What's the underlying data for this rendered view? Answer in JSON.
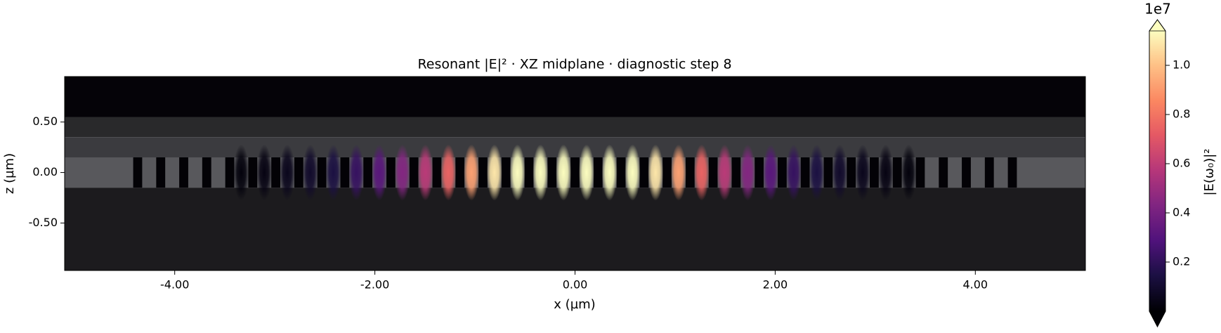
{
  "chart_data": {
    "type": "field-map",
    "title": "Resonant |E|² · XZ midplane · diagnostic step 8",
    "xlabel": "x (µm)",
    "ylabel": "z (µm)",
    "xlim": [
      -5.1,
      5.1
    ],
    "xticks": [
      {
        "value": -4,
        "label": "-4.00"
      },
      {
        "value": -2,
        "label": "-2.00"
      },
      {
        "value": 0,
        "label": "0.00"
      },
      {
        "value": 2,
        "label": "2.00"
      },
      {
        "value": 4,
        "label": "4.00"
      }
    ],
    "ylim": [
      -0.97,
      0.95
    ],
    "yticks": [
      {
        "value": 0.5,
        "label": "0.50"
      },
      {
        "value": 0,
        "label": "0.00"
      },
      {
        "value": -0.5,
        "label": "-0.50"
      }
    ],
    "layers": [
      {
        "z": [
          0.55,
          0.95
        ],
        "color": "#050308"
      },
      {
        "z": [
          0.35,
          0.55
        ],
        "color": "#29292b"
      },
      {
        "z": [
          0.15,
          0.35
        ],
        "color": "#3b3b3f"
      },
      {
        "z": [
          -0.15,
          0.15
        ],
        "color": "#58585c"
      },
      {
        "z": [
          -0.97,
          -0.15
        ],
        "color": "#1c1b1e"
      }
    ],
    "holes": {
      "x": [
        -4.37,
        -4.14,
        -3.91,
        -3.68,
        -3.45,
        -3.22,
        -2.99,
        -2.76,
        -2.53,
        -2.3,
        -2.07,
        -1.84,
        -1.61,
        -1.38,
        -1.15,
        -0.92,
        -0.69,
        -0.46,
        -0.23,
        0,
        0.23,
        0.46,
        0.69,
        0.92,
        1.15,
        1.38,
        1.61,
        1.84,
        2.07,
        2.3,
        2.53,
        2.76,
        2.99,
        3.22,
        3.45,
        3.68,
        3.91,
        4.14,
        4.37
      ],
      "width": 0.09,
      "z": [
        -0.15,
        0.15
      ],
      "color": "#030206"
    },
    "field": {
      "x": [
        -3.335,
        -3.105,
        -2.875,
        -2.645,
        -2.415,
        -2.185,
        -1.955,
        -1.725,
        -1.495,
        -1.265,
        -1.035,
        -0.805,
        -0.575,
        -0.345,
        -0.115,
        0.115,
        0.345,
        0.575,
        0.805,
        1.035,
        1.265,
        1.495,
        1.725,
        1.955,
        2.185,
        2.415,
        2.645,
        2.875,
        3.105,
        3.335
      ],
      "values": [
        0.018,
        0.032,
        0.055,
        0.091,
        0.144,
        0.217,
        0.315,
        0.438,
        0.585,
        0.749,
        0.921,
        1.087,
        1.231,
        1.336,
        1.393,
        1.393,
        1.336,
        1.231,
        1.087,
        0.921,
        0.749,
        0.585,
        0.438,
        0.315,
        0.217,
        0.144,
        0.091,
        0.055,
        0.032,
        0.018
      ]
    },
    "colorbar": {
      "label": "|E(ω₀)|²",
      "offset": "1e7",
      "clim": [
        0,
        1.14
      ],
      "ticks": [
        0.2,
        0.4,
        0.6,
        0.8,
        {
          "value": 1,
          "label": "1.0"
        }
      ],
      "cmap": "magma"
    }
  }
}
